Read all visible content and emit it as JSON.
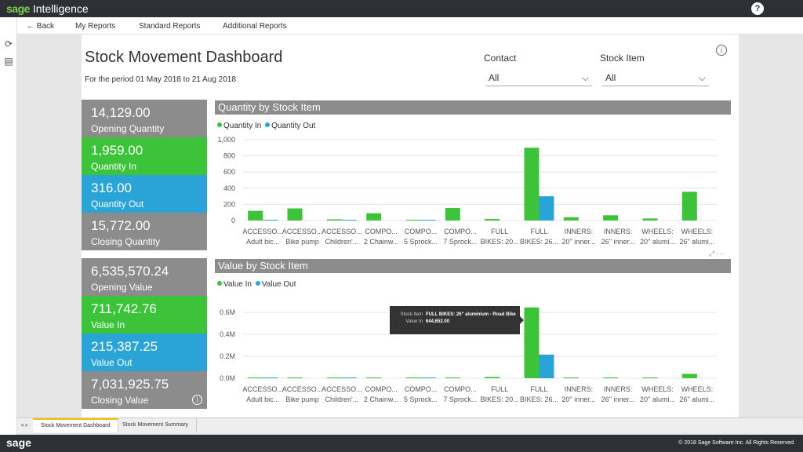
{
  "app": {
    "brand_sage": "sage",
    "brand_product": "Intelligence",
    "help_label": "?"
  },
  "nav": {
    "back": "← Back",
    "items": [
      "My Reports",
      "Standard Reports",
      "Additional Reports"
    ]
  },
  "report": {
    "title": "Stock Movement Dashboard",
    "period": "For the period 01 May 2018 to 21 Aug 2018"
  },
  "filters": {
    "contact": {
      "label": "Contact",
      "value": "All"
    },
    "stock_item": {
      "label": "Stock Item",
      "value": "All"
    }
  },
  "kpis_quantity": [
    {
      "value": "14,129.00",
      "label": "Opening Quantity",
      "color": "#8c8c8c"
    },
    {
      "value": "1,959.00",
      "label": "Quantity In",
      "color": "#3cc339"
    },
    {
      "value": "316.00",
      "label": "Quantity Out",
      "color": "#2aa3d6"
    },
    {
      "value": "15,772.00",
      "label": "Closing Quantity",
      "color": "#8c8c8c"
    }
  ],
  "kpis_value": [
    {
      "value": "6,535,570.24",
      "label": "Opening Value",
      "color": "#8c8c8c"
    },
    {
      "value": "711,742.76",
      "label": "Value In",
      "color": "#3cc339"
    },
    {
      "value": "215,387.25",
      "label": "Value Out",
      "color": "#2aa3d6"
    },
    {
      "value": "7,031,925.75",
      "label": "Closing Value",
      "color": "#8c8c8c"
    }
  ],
  "tooltip": {
    "k1": "Stock Item",
    "v1": "FULL BIKES: 26\" aluminium - Road Bike",
    "k2": "Value In",
    "v2": "644,652.00"
  },
  "chart_tools": "⤢ ⋯",
  "tabs": [
    "Stock Movement Dashboard",
    "Stock Movement Summary"
  ],
  "footer": {
    "logo": "sage",
    "copyright": "© 2018 Sage Software Inc. All Rights Reserved."
  },
  "colors": {
    "in": "#3cc339",
    "out": "#2aa3d6"
  },
  "chart_data": [
    {
      "type": "bar",
      "title": "Quantity by Stock Item",
      "categories": [
        [
          "ACCESSO...",
          "Adult bic..."
        ],
        [
          "ACCESSO...",
          "Bike pump"
        ],
        [
          "ACCESSO...",
          "Children'..."
        ],
        [
          "COMPO...",
          "2 Chainw..."
        ],
        [
          "COMPO...",
          "5 Sprock..."
        ],
        [
          "COMPO...",
          "7 Sprock..."
        ],
        [
          "FULL",
          "BIKES: 20..."
        ],
        [
          "FULL",
          "BIKES: 26..."
        ],
        [
          "INNERS:",
          "20'' inner..."
        ],
        [
          "INNERS:",
          "26'' inner..."
        ],
        [
          "WHEELS:",
          "20'' alumi..."
        ],
        [
          "WHEELS:",
          "26'' alumi..."
        ]
      ],
      "series": [
        {
          "name": "Quantity In",
          "values": [
            120,
            150,
            15,
            90,
            10,
            155,
            20,
            900,
            40,
            65,
            25,
            355
          ]
        },
        {
          "name": "Quantity Out",
          "values": [
            5,
            0,
            5,
            0,
            5,
            0,
            0,
            300,
            0,
            0,
            0,
            0
          ]
        }
      ],
      "ylim": [
        0,
        1000
      ],
      "yticks": [
        0,
        200,
        400,
        600,
        800,
        1000
      ],
      "ytick_labels": [
        "0",
        "200",
        "400",
        "600",
        "800",
        "1,000"
      ],
      "legend": "top-left"
    },
    {
      "type": "bar",
      "title": "Value by Stock Item",
      "categories": [
        [
          "ACCESSO...",
          "Adult bic..."
        ],
        [
          "ACCESSO...",
          "Bike pump"
        ],
        [
          "ACCESSO...",
          "Children'..."
        ],
        [
          "COMPO...",
          "2 Chainw..."
        ],
        [
          "COMPO...",
          "5 Sprock..."
        ],
        [
          "COMPO...",
          "7 Sprock..."
        ],
        [
          "FULL",
          "BIKES: 20..."
        ],
        [
          "FULL",
          "BIKES: 26..."
        ],
        [
          "INNERS:",
          "20'' inner..."
        ],
        [
          "INNERS:",
          "26'' inner..."
        ],
        [
          "WHEELS:",
          "20'' alumi..."
        ],
        [
          "WHEELS:",
          "26'' alumi..."
        ]
      ],
      "series": [
        {
          "name": "Value In",
          "values": [
            5000,
            3000,
            2000,
            3000,
            2000,
            4000,
            12000,
            644652,
            2000,
            3000,
            3000,
            40000
          ]
        },
        {
          "name": "Value Out",
          "values": [
            3000,
            0,
            4000,
            0,
            3000,
            0,
            0,
            215000,
            0,
            0,
            0,
            0
          ]
        }
      ],
      "ylim": [
        0,
        700000
      ],
      "yticks": [
        0,
        200000,
        400000,
        600000
      ],
      "ytick_labels": [
        "0.0M",
        "0.2M",
        "0.4M",
        "0.6M"
      ],
      "legend": "top-left"
    }
  ]
}
